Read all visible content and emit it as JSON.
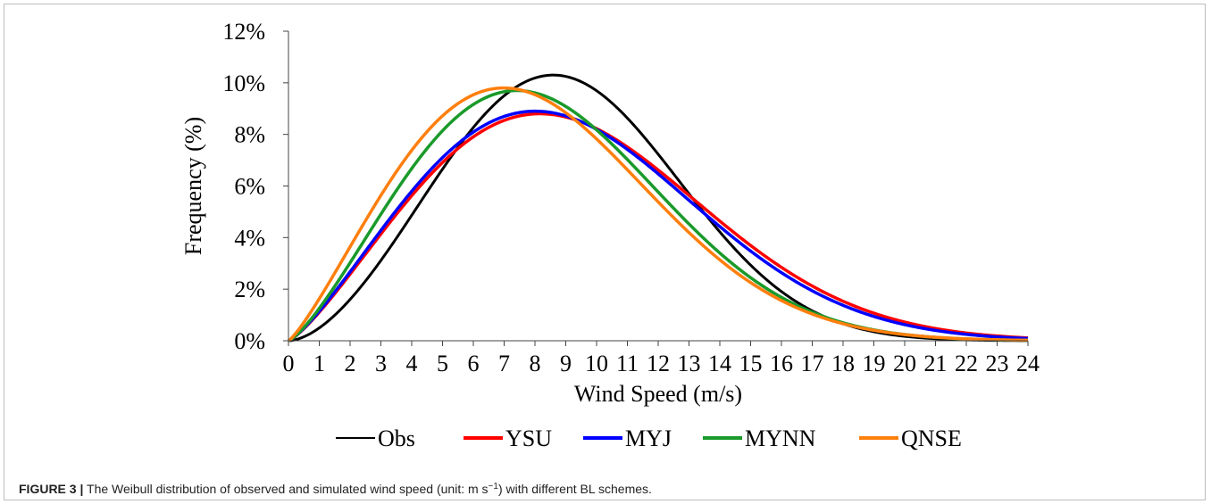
{
  "chart_data": {
    "type": "line",
    "xlabel": "Wind Speed (m/s)",
    "ylabel": "Frequency (%)",
    "xlim": [
      0,
      24
    ],
    "ylim": [
      0,
      12
    ],
    "x_ticks": [
      0,
      1,
      2,
      3,
      4,
      5,
      6,
      7,
      8,
      9,
      10,
      11,
      12,
      13,
      14,
      15,
      16,
      17,
      18,
      19,
      20,
      21,
      22,
      23,
      24
    ],
    "y_ticks": [
      0,
      2,
      4,
      6,
      8,
      10,
      12
    ],
    "y_tick_labels": [
      "0%",
      "2%",
      "4%",
      "6%",
      "8%",
      "10%",
      "12%"
    ],
    "grid": false,
    "legend_position": "bottom",
    "series": [
      {
        "name": "Obs",
        "color": "#000000",
        "weibull_k": 2.7,
        "weibull_c": 10.2,
        "peak_x": 8.7,
        "peak_y": 10.3
      },
      {
        "name": "YSU",
        "color": "#ff0000",
        "weibull_k": 2.25,
        "weibull_c": 10.6,
        "peak_x": 8.3,
        "peak_y": 8.8
      },
      {
        "name": "MYJ",
        "color": "#0000ff",
        "weibull_k": 2.25,
        "weibull_c": 10.4,
        "peak_x": 8.1,
        "peak_y": 8.9
      },
      {
        "name": "MYNN",
        "color": "#1a9a2a",
        "weibull_k": 2.3,
        "weibull_c": 9.5,
        "peak_x": 7.4,
        "peak_y": 9.7
      },
      {
        "name": "QNSE",
        "color": "#ff7f0e",
        "weibull_k": 2.2,
        "weibull_c": 9.2,
        "peak_x": 7.0,
        "peak_y": 9.8
      }
    ]
  },
  "caption": {
    "label": "FIGURE 3 |",
    "text_before": " The Weibull distribution of observed and simulated wind speed (unit: m s",
    "superscript": "−1",
    "text_after": ") with different BL schemes."
  }
}
